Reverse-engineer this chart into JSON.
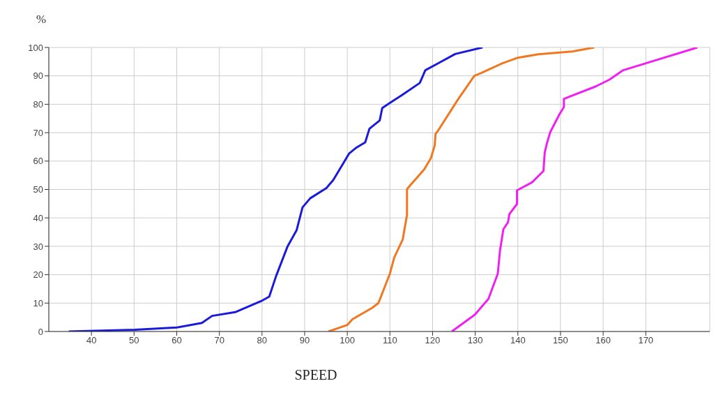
{
  "chart_data": {
    "type": "line",
    "xlabel": "SPEED",
    "ylabel": "%",
    "xlim": [
      30,
      185
    ],
    "xticks": [
      40,
      50,
      60,
      70,
      80,
      90,
      100,
      110,
      120,
      130,
      140,
      150,
      160,
      170
    ],
    "ylim": [
      0,
      100
    ],
    "yticks": [
      0,
      10,
      20,
      30,
      40,
      50,
      60,
      70,
      80,
      90,
      100
    ],
    "grid": true,
    "series": [
      {
        "color": "#1a1adb",
        "x": [
          34.7,
          50.2,
          60,
          65.9,
          68.3,
          73.7,
          79.8,
          81.7,
          83.3,
          86,
          88.1,
          89.5,
          91.3,
          95.1,
          96.7,
          100.4,
          102,
          104.2,
          105.2,
          107.6,
          108.2,
          110.6,
          112.7,
          117,
          118.3,
          121.3,
          125.3,
          131.7
        ],
        "values": [
          0,
          0.6,
          1.4,
          3,
          5.5,
          6.8,
          10.7,
          12.3,
          19.5,
          30,
          35.6,
          43.7,
          46.9,
          50.5,
          53.3,
          62.6,
          64.6,
          66.6,
          71.4,
          74.3,
          78.7,
          81.1,
          83.1,
          87.5,
          92,
          94.4,
          97.7,
          100
        ]
      },
      {
        "color": "#f07820",
        "x": [
          95.6,
          100,
          101.2,
          105.8,
          107.3,
          110,
          111,
          113,
          114,
          114,
          114.9,
          118,
          119.6,
          120.5,
          120.7,
          121.2,
          126,
          129.8,
          131.4,
          136.3,
          140,
          144.8,
          152.8,
          157.9
        ],
        "values": [
          0,
          2.3,
          4.3,
          8.3,
          10,
          20.4,
          26,
          32.4,
          41,
          50.1,
          51.7,
          57,
          61,
          65.5,
          69.6,
          70.5,
          81.8,
          90,
          91,
          94.4,
          96.4,
          97.6,
          98.6,
          100
        ]
      },
      {
        "color": "#f020f0",
        "x": [
          124.5,
          129.9,
          133.1,
          135.3,
          135.8,
          136.6,
          137.7,
          138,
          139.8,
          139.8,
          143.3,
          146,
          146.3,
          146.8,
          147.6,
          149.8,
          150.8,
          150.8,
          158.3,
          161.5,
          164.7,
          182.1
        ],
        "values": [
          0,
          5.9,
          11.5,
          20.4,
          28.4,
          36,
          38.5,
          41.3,
          44.9,
          49.7,
          52.5,
          56.5,
          63,
          66.2,
          70.2,
          76.6,
          79,
          81.9,
          86.3,
          88.7,
          92,
          100
        ]
      }
    ]
  }
}
